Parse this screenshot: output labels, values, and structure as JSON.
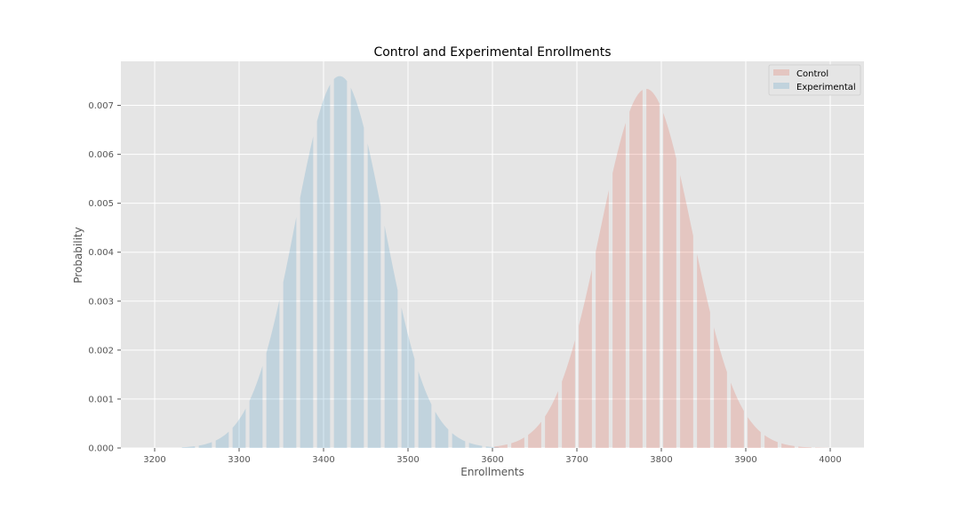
{
  "colors": {
    "background": "#e5e5e5",
    "grid": "#ffffff",
    "control": "#e24a33",
    "experimental": "#348abd"
  },
  "chart_data": {
    "type": "area",
    "title": "Control and Experimental Enrollments",
    "xlabel": "Enrollments",
    "ylabel": "Probability",
    "xlim": [
      3160,
      4040
    ],
    "ylim": [
      0,
      0.0079
    ],
    "xticks": [
      3200,
      3300,
      3400,
      3500,
      3600,
      3700,
      3800,
      3900,
      4000
    ],
    "yticks": [
      0.0,
      0.001,
      0.002,
      0.003,
      0.004,
      0.005,
      0.006,
      0.007
    ],
    "ytick_labels": [
      "0.000",
      "0.001",
      "0.002",
      "0.003",
      "0.004",
      "0.005",
      "0.006",
      "0.007"
    ],
    "grid": true,
    "legend_position": "top-right",
    "series": [
      {
        "name": "Control",
        "color": "#e24a33",
        "opacity": 0.2,
        "distribution": "normal",
        "mean": 3782,
        "std": 54.3,
        "peak": 0.00734,
        "x_range": [
          3600,
          4000
        ]
      },
      {
        "name": "Experimental",
        "color": "#348abd",
        "opacity": 0.2,
        "distribution": "normal",
        "mean": 3419,
        "std": 52.5,
        "peak": 0.0076,
        "x_range": [
          3230,
          3610
        ]
      }
    ]
  }
}
